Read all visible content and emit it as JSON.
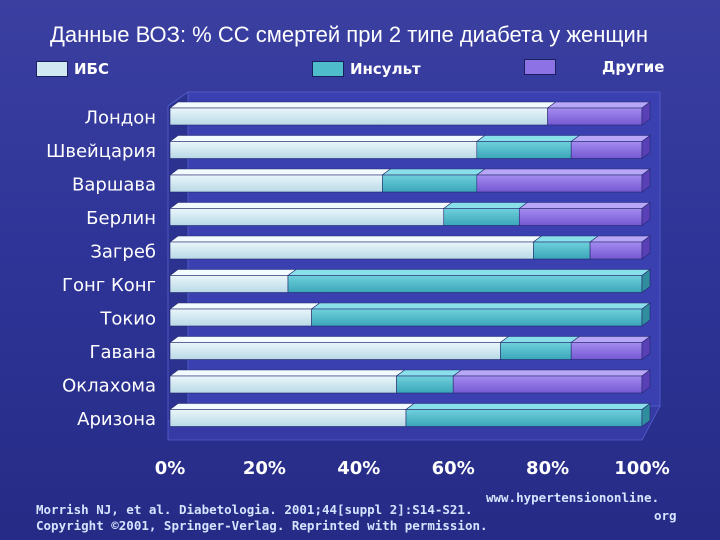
{
  "title": "Данные ВОЗ: % СС смертей при 2 типе диабета у женщин",
  "legend": [
    {
      "label": "ИБС",
      "color": "#cfe8f2"
    },
    {
      "label": "Инсульт",
      "color": "#4fbccc"
    },
    {
      "label": "Другие",
      "color": "#8c72e4"
    }
  ],
  "chart_data": {
    "type": "bar",
    "orientation": "horizontal",
    "stacked": true,
    "categories": [
      "Лондон",
      "Швейцария",
      "Варшава",
      "Берлин",
      "Загреб",
      "Гонг Конг",
      "Токио",
      "Гавана",
      "Оклахома",
      "Аризона"
    ],
    "series": [
      {
        "name": "ИБС",
        "values": [
          80,
          65,
          45,
          58,
          77,
          25,
          30,
          70,
          48,
          50
        ]
      },
      {
        "name": "Инсульт",
        "values": [
          0,
          20,
          20,
          16,
          12,
          75,
          70,
          15,
          12,
          50
        ]
      },
      {
        "name": "Другие",
        "values": [
          20,
          15,
          35,
          26,
          11,
          0,
          0,
          15,
          40,
          0
        ]
      }
    ],
    "xlim": [
      0,
      100
    ],
    "x_tick_labels": [
      "0%",
      "20%",
      "40%",
      "60%",
      "80%",
      "100%"
    ],
    "colors": {
      "base": "#cfe8f2",
      "mid": "#4fbccc",
      "top": "#8c72e4"
    }
  },
  "footer": {
    "citation": "Morrish NJ, et al. Diabetologia. 2001;44[suppl 2]:S14-S21.",
    "copyright": "Copyright ©2001, Springer-Verlag. Reprinted with permission.",
    "url_line1": "www.hypertensiononline.",
    "url_line2": "org"
  }
}
